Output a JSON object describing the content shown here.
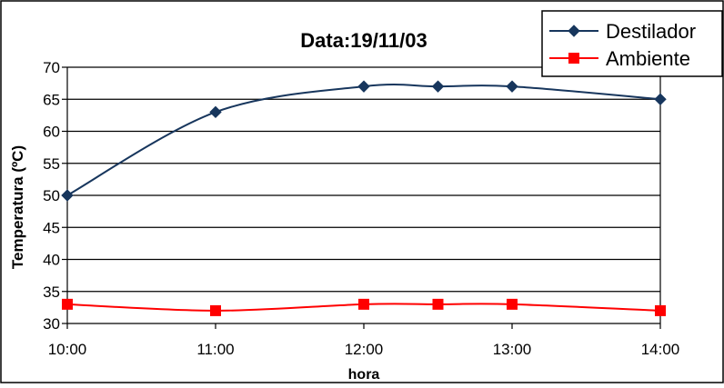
{
  "chart_data": {
    "type": "line",
    "title": "Data:19/11/03",
    "xlabel": "hora",
    "ylabel": "Temperatura (ºC)",
    "ylim": [
      30,
      70
    ],
    "yticks": [
      "30",
      "35",
      "40",
      "45",
      "50",
      "55",
      "60",
      "65",
      "70"
    ],
    "xticks": [
      "10:00",
      "11:00",
      "12:00",
      "13:00",
      "14:00"
    ],
    "grid": true,
    "legend_position": "top-right",
    "x_hours": [
      10,
      11,
      12,
      12.5,
      13,
      14
    ],
    "series": [
      {
        "name": "Destilador",
        "color": "#17365D",
        "marker": "diamond",
        "values": [
          50,
          63,
          67,
          67,
          67,
          65
        ]
      },
      {
        "name": "Ambiente",
        "color": "#FF0000",
        "marker": "square",
        "values": [
          33,
          32,
          33,
          33,
          33,
          32
        ]
      }
    ]
  }
}
